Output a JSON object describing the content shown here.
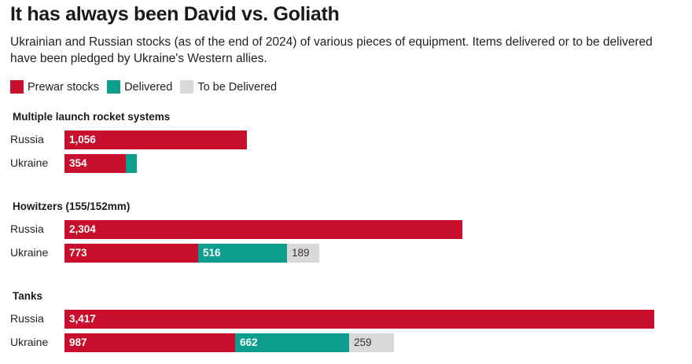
{
  "title": "It has always been David vs. Goliath",
  "subtitle": "Ukrainian and Russian stocks (as of the end of 2024) of various pieces of equipment. Items delivered or to be delivered have been pledged by Ukraine's Western allies.",
  "legend": [
    {
      "label": "Prewar stocks",
      "color": "#c8102e"
    },
    {
      "label": "Delivered",
      "color": "#0e9e8e"
    },
    {
      "label": "To be Delivered",
      "color": "#d9d9d9"
    }
  ],
  "chart_data": {
    "type": "bar",
    "orientation": "horizontal",
    "stacked": true,
    "series_names": [
      "Prewar stocks",
      "Delivered",
      "To be Delivered"
    ],
    "groups": [
      {
        "title": "Multiple launch rocket systems",
        "rows": [
          {
            "label": "Russia",
            "values": [
              1056,
              0,
              0
            ],
            "labels": [
              "1,056",
              "",
              ""
            ]
          },
          {
            "label": "Ukraine",
            "values": [
              354,
              65,
              0
            ],
            "labels": [
              "354",
              "",
              ""
            ]
          }
        ]
      },
      {
        "title": "Howitzers (155/152mm)",
        "rows": [
          {
            "label": "Russia",
            "values": [
              2304,
              0,
              0
            ],
            "labels": [
              "2,304",
              "",
              ""
            ]
          },
          {
            "label": "Ukraine",
            "values": [
              773,
              516,
              189
            ],
            "labels": [
              "773",
              "516",
              "189"
            ]
          }
        ]
      },
      {
        "title": "Tanks",
        "rows": [
          {
            "label": "Russia",
            "values": [
              3417,
              0,
              0
            ],
            "labels": [
              "3,417",
              "",
              ""
            ]
          },
          {
            "label": "Ukraine",
            "values": [
              987,
              662,
              259
            ],
            "labels": [
              "987",
              "662",
              "259"
            ]
          }
        ]
      }
    ]
  }
}
